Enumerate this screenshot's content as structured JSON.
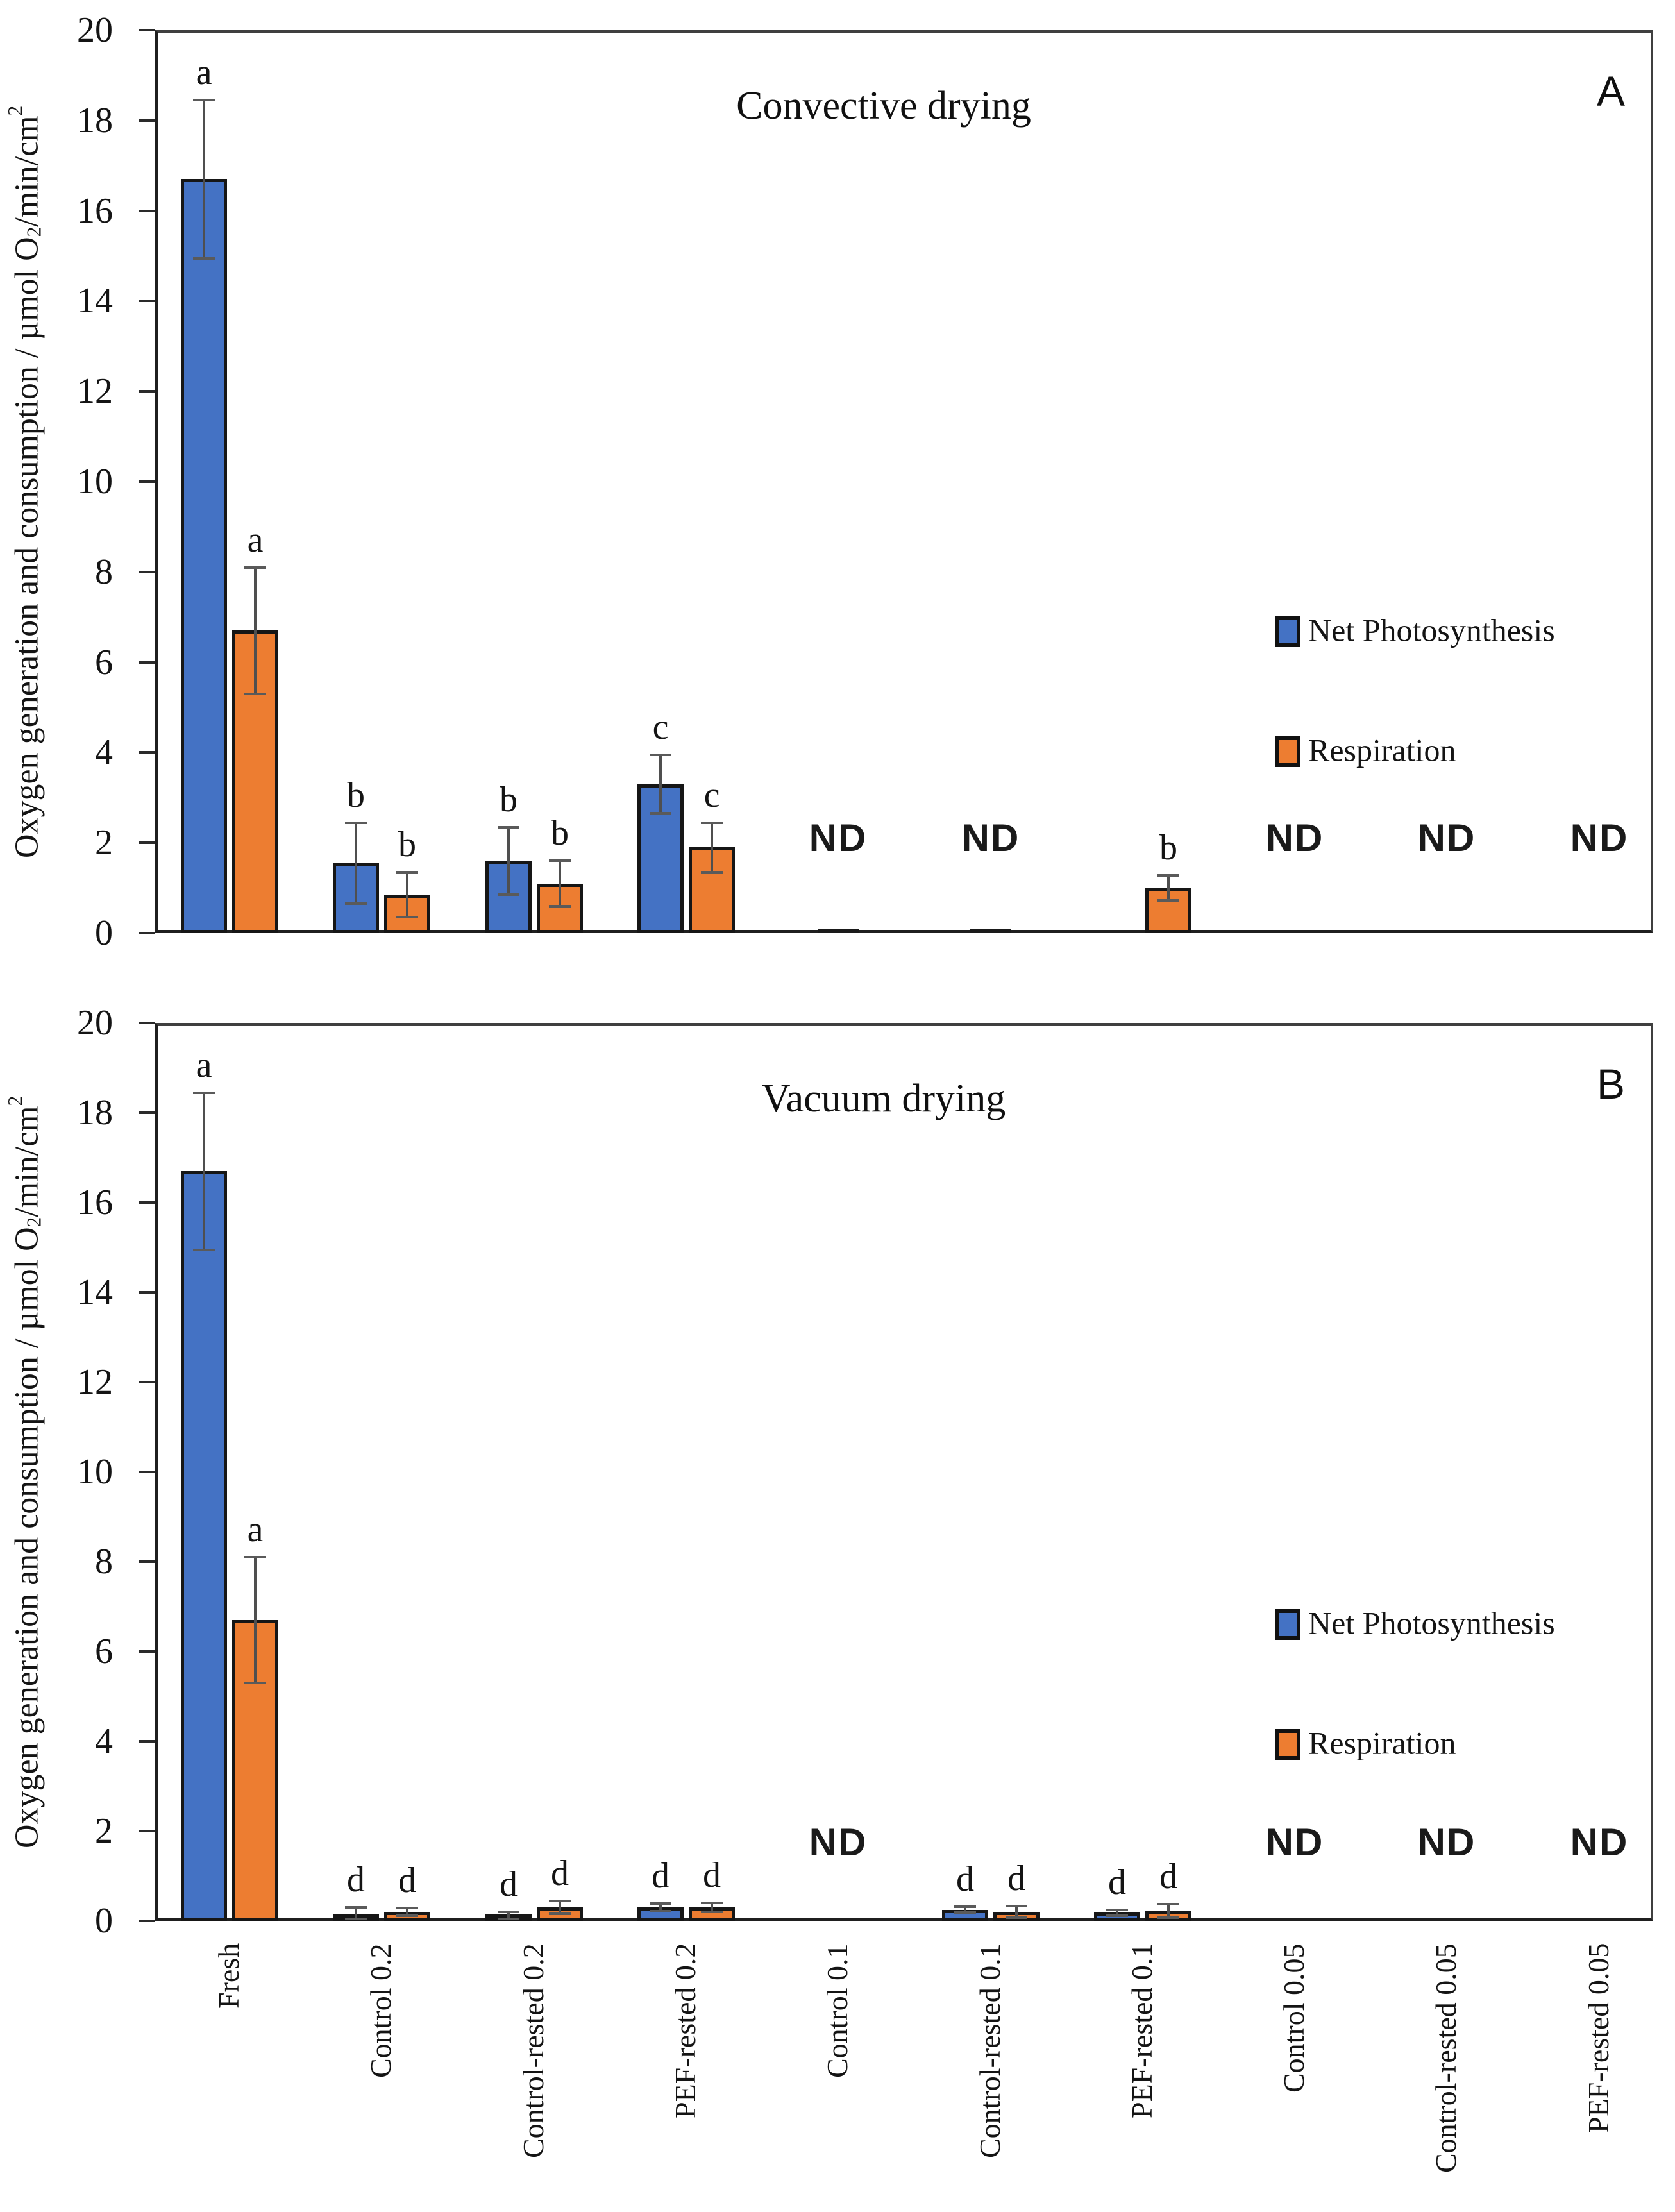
{
  "figure": {
    "background": "#ffffff",
    "text_color": "#141414",
    "nd_text": "ND",
    "ylabel_parts": {
      "pre": "Oxygen generation and consumption / µmol O",
      "sub": "2",
      "mid": "/min/cm",
      "sup": "2"
    },
    "legend": [
      {
        "label": "Net Photosynthesis",
        "color": "#4472C4"
      },
      {
        "label": "Respiration",
        "color": "#ED7D31"
      }
    ],
    "colors": {
      "blue": "#4472C4",
      "orange": "#ED7D31",
      "bar_border": "#161616",
      "error_bar": "#4f4f4f",
      "axis": "#1f1f1f",
      "frame": "#3f3f3f"
    }
  },
  "chart_data": [
    {
      "type": "bar",
      "panel_label": "A",
      "title": "Convective drying",
      "ylabel": "Oxygen generation and consumption / µmol O2/min/cm2",
      "xlabel": "",
      "ylim": [
        0,
        20
      ],
      "ytick_step": 2,
      "grid": false,
      "legend_position": "middle-right",
      "categories": [
        "Fresh",
        "Control 0.2",
        "Control-rested 0.2",
        "PEF-rested 0.2",
        "Control 0.1",
        "Control-rested 0.1",
        "PEF-rested 0.1",
        "Control 0.05",
        "Control-rested 0.05",
        "PEF-rested 0.05"
      ],
      "series": [
        {
          "name": "Net Photosynthesis",
          "color": "#4472C4",
          "values": [
            16.7,
            1.55,
            1.6,
            3.3,
            null,
            null,
            null,
            null,
            null,
            null
          ],
          "errors": [
            1.75,
            0.9,
            0.75,
            0.65,
            null,
            null,
            null,
            null,
            null,
            null
          ],
          "sig_letters": [
            "a",
            "b",
            "b",
            "c",
            null,
            null,
            null,
            null,
            null,
            null
          ]
        },
        {
          "name": "Respiration",
          "color": "#ED7D31",
          "values": [
            6.7,
            0.85,
            1.1,
            1.9,
            null,
            null,
            1.0,
            null,
            null,
            null
          ],
          "errors": [
            1.4,
            0.5,
            0.5,
            0.55,
            null,
            null,
            0.28,
            null,
            null,
            null
          ],
          "sig_letters": [
            "a",
            "b",
            "b",
            "c",
            null,
            null,
            "b",
            null,
            null,
            null
          ]
        }
      ],
      "nd_categories": [
        4,
        5,
        7,
        8,
        9
      ],
      "near_zero_axis_marks": [
        4,
        5
      ]
    },
    {
      "type": "bar",
      "panel_label": "B",
      "title": "Vacuum drying",
      "ylabel": "Oxygen generation and consumption / µmol O2/min/cm2",
      "xlabel": "",
      "ylim": [
        0,
        20
      ],
      "ytick_step": 2,
      "grid": false,
      "legend_position": "middle-right",
      "categories": [
        "Fresh",
        "Control 0.2",
        "Control-rested 0.2",
        "PEF-rested 0.2",
        "Control 0.1",
        "Control-rested 0.1",
        "PEF-rested 0.1",
        "Control 0.05",
        "Control-rested 0.05",
        "PEF-rested 0.05"
      ],
      "series": [
        {
          "name": "Net Photosynthesis",
          "color": "#4472C4",
          "values": [
            16.7,
            0.15,
            0.08,
            0.3,
            null,
            0.25,
            0.18,
            null,
            null,
            null
          ],
          "errors": [
            1.75,
            0.15,
            0.12,
            0.08,
            null,
            0.06,
            0.06,
            null,
            null,
            null
          ],
          "sig_letters": [
            "a",
            "d",
            "d",
            "d",
            null,
            "d",
            "d",
            null,
            null,
            null
          ]
        },
        {
          "name": "Respiration",
          "color": "#ED7D31",
          "values": [
            6.7,
            0.2,
            0.3,
            0.3,
            null,
            0.2,
            0.22,
            null,
            null,
            null
          ],
          "errors": [
            1.4,
            0.08,
            0.14,
            0.1,
            null,
            0.13,
            0.15,
            null,
            null,
            null
          ],
          "sig_letters": [
            "a",
            "d",
            "d",
            "d",
            null,
            "d",
            "d",
            null,
            null,
            null
          ]
        }
      ],
      "nd_categories": [
        4,
        7,
        8,
        9
      ],
      "near_zero_axis_marks": []
    }
  ]
}
